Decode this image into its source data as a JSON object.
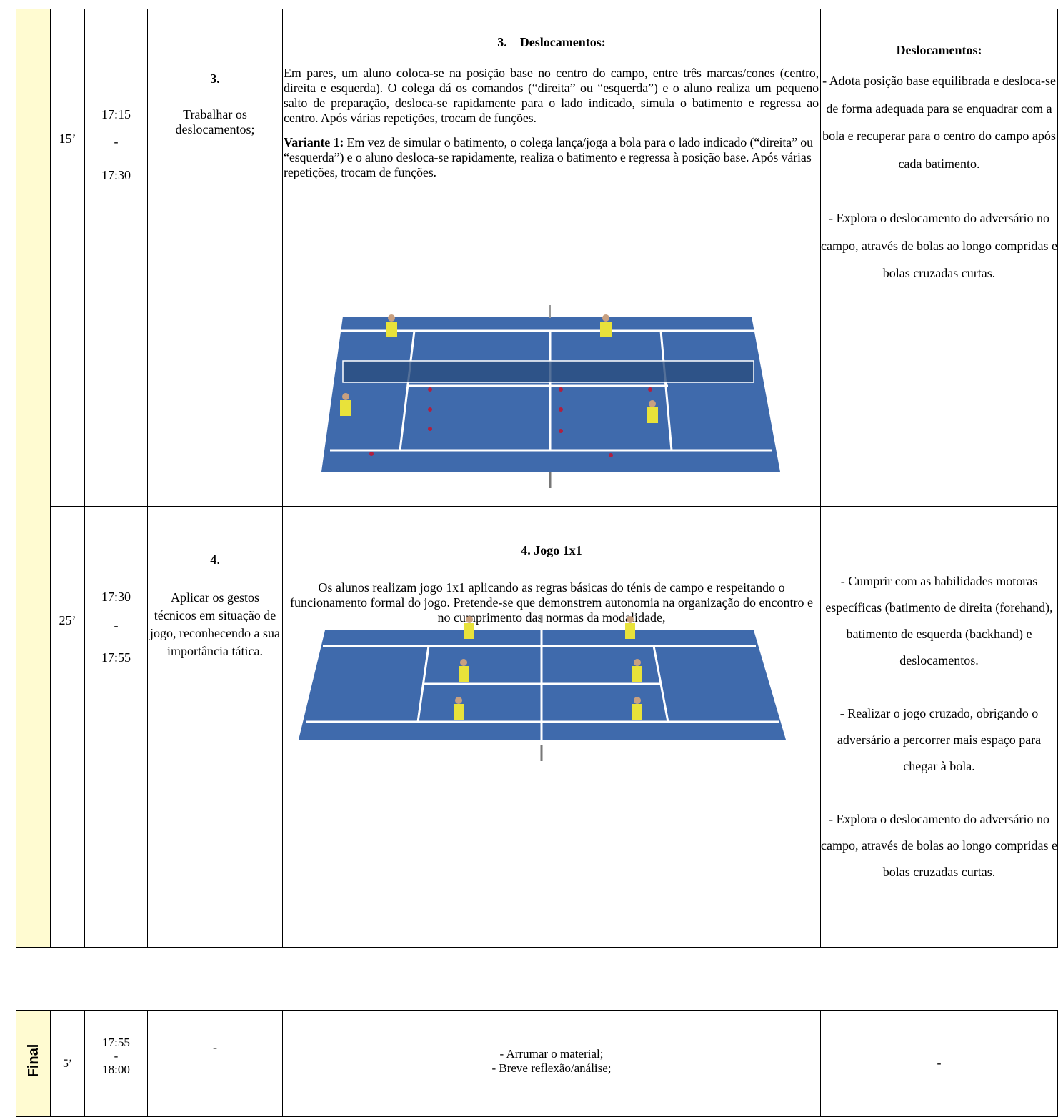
{
  "table": {
    "rows": [
      {
        "duration": "15’",
        "time_start": "17:15",
        "time_sep": "-",
        "time_end": "17:30",
        "objective_number": "3.",
        "objective": "Trabalhar os deslocamentos;",
        "activity_title": "3.    Deslocamentos:",
        "activity_text": "Em pares, um aluno coloca-se na posição base no centro do campo, entre três marcas/cones (centro, direita e esquerda). O colega dá os comandos (“direita” ou “esquerda”) e o aluno realiza um pequeno salto de preparação, desloca-se rapidamente para o lado indicado, simula o batimento e regressa ao centro. Após várias repetições, trocam de funções.",
        "variant_label": "Variante 1:",
        "variant_text": "Em vez de simular o batimento, o colega lança/joga a bola para o lado indicado (“direita” ou “esquerda”) e o aluno desloca-se rapidamente, realiza o batimento e regressa à posição base. Após várias repetições, trocam de funções.",
        "criteria_title": "Deslocamentos:",
        "criteria": [
          "- Adota posição base equilibrada e desloca-se de forma adequada para se enquadrar com a bola e recuperar para o centro do campo após cada batimento.",
          "- Explora o deslocamento do adversário no campo, através de bolas ao longo compridas e bolas cruzadas curtas."
        ]
      },
      {
        "duration": "25’",
        "time_start": "17:30",
        "time_sep": "-",
        "time_end": "17:55",
        "objective_number": "4",
        "objective_number_suffix": ".",
        "objective": "Aplicar os gestos técnicos em situação de jogo, reconhecendo a sua importância tática.",
        "activity_title": "4. Jogo 1x1",
        "activity_text": "Os alunos realizam jogo 1x1 aplicando as regras básicas do ténis de campo e respeitando o funcionamento formal do jogo. Pretende-se que demonstrem autonomia na organização do encontro e no cumprimento das normas da modalidade,",
        "criteria": [
          "- Cumprir com as habilidades motoras específicas (batimento de direita (forehand), batimento de esquerda (backhand) e deslocamentos.",
          "- Realizar o jogo cruzado, obrigando o adversário a percorrer mais espaço para chegar à bola.",
          "- Explora o deslocamento do adversário no campo, através de bolas ao longo compridas e bolas cruzadas curtas."
        ]
      }
    ]
  },
  "final_table": {
    "phase": "Final",
    "duration": "5’",
    "time_start": "17:55",
    "time_sep": "-",
    "time_end": "18:00",
    "objective": "-",
    "activities": [
      "- Arrumar o material;",
      "- Breve reflexão/análise;"
    ],
    "criteria": "-"
  }
}
